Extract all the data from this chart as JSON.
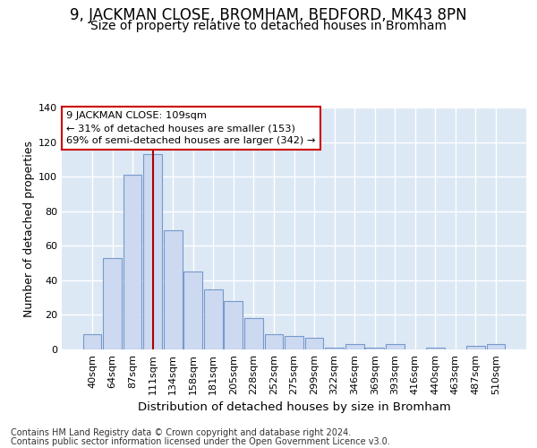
{
  "title": "9, JACKMAN CLOSE, BROMHAM, BEDFORD, MK43 8PN",
  "subtitle": "Size of property relative to detached houses in Bromham",
  "xlabel": "Distribution of detached houses by size in Bromham",
  "ylabel": "Number of detached properties",
  "bar_labels": [
    "40sqm",
    "64sqm",
    "87sqm",
    "111sqm",
    "134sqm",
    "158sqm",
    "181sqm",
    "205sqm",
    "228sqm",
    "252sqm",
    "275sqm",
    "299sqm",
    "322sqm",
    "346sqm",
    "369sqm",
    "393sqm",
    "416sqm",
    "440sqm",
    "463sqm",
    "487sqm",
    "510sqm"
  ],
  "bar_values": [
    9,
    53,
    101,
    113,
    69,
    45,
    35,
    28,
    18,
    9,
    8,
    7,
    1,
    3,
    1,
    3,
    0,
    1,
    0,
    2,
    3
  ],
  "bar_color": "#ccd9f0",
  "bar_edge_color": "#7799cc",
  "ylim": [
    0,
    140
  ],
  "yticks": [
    0,
    20,
    40,
    60,
    80,
    100,
    120,
    140
  ],
  "vline_index": 3,
  "vline_color": "#aa0000",
  "annotation_line1": "9 JACKMAN CLOSE: 109sqm",
  "annotation_line2": "← 31% of detached houses are smaller (153)",
  "annotation_line3": "69% of semi-detached houses are larger (342) →",
  "annotation_box_color": "#ffffff",
  "annotation_box_edge_color": "#cc0000",
  "footer_line1": "Contains HM Land Registry data © Crown copyright and database right 2024.",
  "footer_line2": "Contains public sector information licensed under the Open Government Licence v3.0.",
  "fig_bg_color": "#ffffff",
  "plot_bg_color": "#dde8f5",
  "grid_color": "#ffffff",
  "title_fontsize": 12,
  "subtitle_fontsize": 10,
  "tick_fontsize": 8,
  "ylabel_fontsize": 9,
  "xlabel_fontsize": 9.5,
  "footer_fontsize": 7
}
